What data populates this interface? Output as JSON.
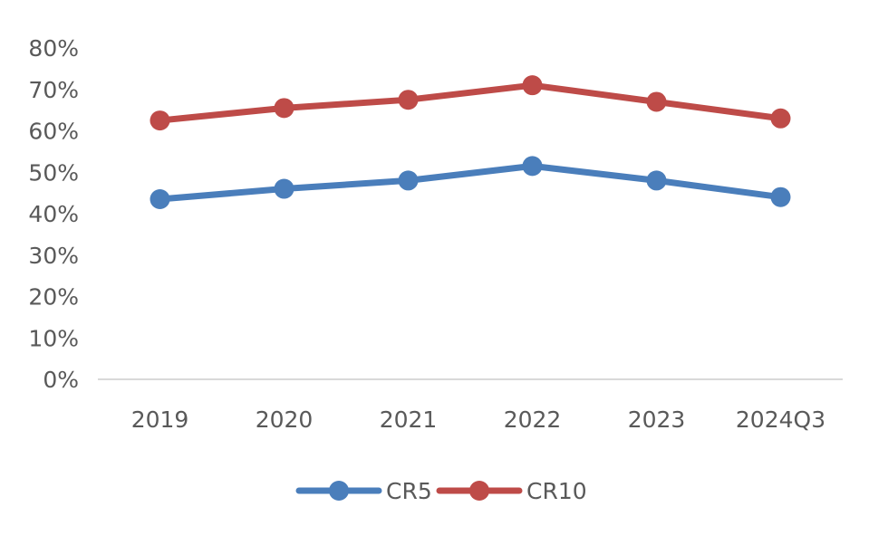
{
  "chart_data": {
    "type": "line",
    "title": "",
    "xlabel": "",
    "ylabel": "",
    "categories": [
      "2019",
      "2020",
      "2021",
      "2022",
      "2023",
      "2024Q3"
    ],
    "ylim": [
      0,
      80
    ],
    "yticks": [
      "0%",
      "10%",
      "20%",
      "30%",
      "40%",
      "50%",
      "60%",
      "70%",
      "80%"
    ],
    "grid": false,
    "legend": "bottom",
    "series": [
      {
        "name": "CR5",
        "color": "#4a7ebb",
        "values": [
          43.5,
          46,
          48,
          51.5,
          48,
          44
        ]
      },
      {
        "name": "CR10",
        "color": "#be4b48",
        "values": [
          62.5,
          65.5,
          67.5,
          71,
          67,
          63
        ]
      }
    ]
  }
}
